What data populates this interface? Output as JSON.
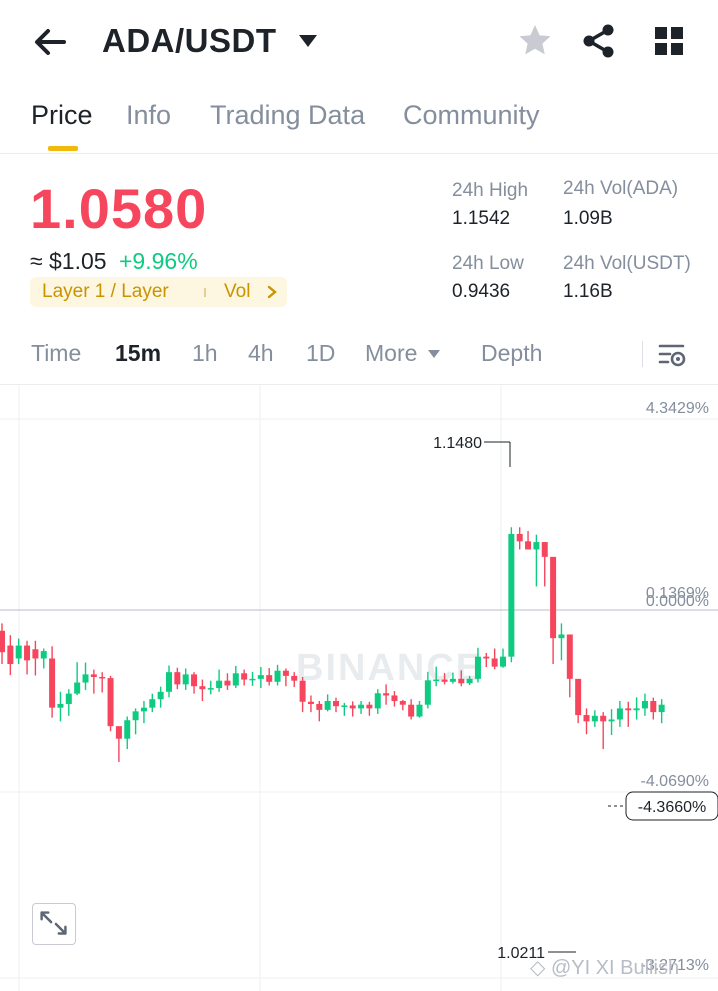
{
  "header": {
    "pair": "ADA/USDT",
    "icons": [
      "back-arrow-icon",
      "caret-down-icon",
      "star-icon",
      "share-icon",
      "grid-icon"
    ]
  },
  "tabs": [
    {
      "label": "Price",
      "active": true
    },
    {
      "label": "Info",
      "active": false
    },
    {
      "label": "Trading Data",
      "active": false
    },
    {
      "label": "Community",
      "active": false
    }
  ],
  "ticker": {
    "last_price": "1.0580",
    "usd_price": "≈ $1.05",
    "change_pct": "+9.96%",
    "tag": "Layer 1 / Layer",
    "tag_vol": "Vol",
    "stats": {
      "high_label": "24h High",
      "high_value": "1.1542",
      "vol_ada_label": "24h Vol(ADA)",
      "vol_ada_value": "1.09B",
      "low_label": "24h Low",
      "low_value": "0.9436",
      "vol_usdt_label": "24h Vol(USDT)",
      "vol_usdt_value": "1.16B"
    }
  },
  "timeframes": {
    "items": [
      "Time",
      "15m",
      "1h",
      "4h",
      "1D",
      "More"
    ],
    "active": "15m",
    "depth": "Depth"
  },
  "colors": {
    "up": "#0ecb81",
    "down": "#f6465d",
    "accent": "#f0b90b",
    "muted": "#848e9c"
  },
  "chart_data": {
    "type": "candlestick",
    "interval": "15m",
    "price_max": 1.1542,
    "price_min": 1.0211,
    "right_axis_labels": [
      "4.3429%",
      "0.1369%",
      "0.0000%",
      "-4.0690%",
      "-3.2713%"
    ],
    "current_label": "-4.3660%",
    "high_marker": "1.1480",
    "low_marker": "1.0211",
    "watermark": "BINANCE",
    "candles": [
      [
        1.108,
        1.1022,
        1.11,
        1.099
      ],
      [
        1.104,
        1.099,
        1.1068,
        1.096
      ],
      [
        1.1005,
        1.104,
        1.1059,
        1.099
      ],
      [
        1.104,
        1.1,
        1.1053,
        1.0962
      ],
      [
        1.103,
        1.1005,
        1.1053,
        1.0959
      ],
      [
        1.1005,
        1.1025,
        1.1032,
        1.0978
      ],
      [
        1.1005,
        1.0872,
        1.1038,
        1.0845
      ],
      [
        1.0872,
        1.0882,
        1.0915,
        1.0835
      ],
      [
        1.0882,
        1.091,
        1.0922,
        1.085
      ],
      [
        1.091,
        1.094,
        1.0995,
        1.0906
      ],
      [
        1.094,
        1.0962,
        1.0994,
        1.092
      ],
      [
        1.0962,
        1.0955,
        1.0975,
        1.091
      ],
      [
        1.0955,
        1.0952,
        1.0968,
        1.0913
      ],
      [
        1.0952,
        1.0822,
        1.0958,
        1.0808
      ],
      [
        1.0822,
        1.0788,
        1.082,
        1.0725
      ],
      [
        1.0788,
        1.0838,
        1.0848,
        1.076
      ],
      [
        1.0838,
        1.0862,
        1.087,
        1.08
      ],
      [
        1.0862,
        1.0872,
        1.089,
        1.083
      ],
      [
        1.0872,
        1.0895,
        1.091,
        1.086
      ],
      [
        1.0895,
        1.0915,
        1.0929,
        1.0872
      ],
      [
        1.0915,
        1.0968,
        1.0986,
        1.09
      ],
      [
        1.0968,
        1.0935,
        1.098,
        1.0922
      ],
      [
        1.0935,
        1.0962,
        1.0978,
        1.092
      ],
      [
        1.0962,
        1.093,
        1.0968,
        1.091
      ],
      [
        1.093,
        1.0922,
        1.0948,
        1.089
      ],
      [
        1.0922,
        1.0925,
        1.0945,
        1.0908
      ],
      [
        1.0925,
        1.0945,
        1.0975,
        1.0915
      ],
      [
        1.0945,
        1.0932,
        1.0965,
        1.092
      ],
      [
        1.0932,
        1.0965,
        1.0985,
        1.0925
      ],
      [
        1.0965,
        1.0948,
        1.0975,
        1.0932
      ],
      [
        1.0948,
        1.095,
        1.0969,
        1.0931
      ],
      [
        1.095,
        1.096,
        1.0982,
        1.0925
      ],
      [
        1.096,
        1.0942,
        1.0979,
        1.0932
      ],
      [
        1.0942,
        1.0972,
        1.0988,
        1.0932
      ],
      [
        1.0972,
        1.0958,
        1.0978,
        1.093
      ],
      [
        1.0958,
        1.0945,
        1.0968,
        1.0928
      ],
      [
        1.0945,
        1.0888,
        1.0955,
        1.086
      ],
      [
        1.0888,
        1.0882,
        1.0905,
        1.086
      ],
      [
        1.0882,
        1.0866,
        1.089,
        1.0835
      ],
      [
        1.0866,
        1.089,
        1.0908,
        1.0862
      ],
      [
        1.089,
        1.0876,
        1.0899,
        1.086
      ],
      [
        1.0876,
        1.0878,
        1.0885,
        1.085
      ],
      [
        1.0878,
        1.087,
        1.0889,
        1.0848
      ],
      [
        1.087,
        1.088,
        1.089,
        1.0855
      ],
      [
        1.088,
        1.087,
        1.0888,
        1.085
      ],
      [
        1.087,
        1.0911,
        1.0922,
        1.0855
      ],
      [
        1.0911,
        1.0905,
        1.0935,
        1.088
      ],
      [
        1.0905,
        1.089,
        1.0917,
        1.0875
      ],
      [
        1.089,
        1.088,
        1.0893,
        1.0865
      ],
      [
        1.088,
        1.0848,
        1.0895,
        1.084
      ],
      [
        1.0848,
        1.088,
        1.089,
        1.0845
      ],
      [
        1.088,
        1.0946,
        1.0969,
        1.087
      ],
      [
        1.0946,
        1.0948,
        1.0983,
        1.093
      ],
      [
        1.0948,
        1.0942,
        1.0966,
        1.0935
      ],
      [
        1.0942,
        1.095,
        1.0967,
        1.0937
      ],
      [
        1.095,
        1.0938,
        1.0973,
        1.093
      ],
      [
        1.0938,
        1.095,
        1.0958,
        1.0933
      ],
      [
        1.095,
        1.101,
        1.1034,
        1.094
      ],
      [
        1.101,
        1.1005,
        1.102,
        1.0982
      ],
      [
        1.1005,
        1.0983,
        1.1032,
        1.0976
      ],
      [
        1.0983,
        1.101,
        1.1032,
        1.098
      ],
      [
        1.101,
        1.1342,
        1.136,
        1.0995
      ],
      [
        1.1342,
        1.1322,
        1.136,
        1.13
      ],
      [
        1.1322,
        1.13,
        1.135,
        1.13
      ],
      [
        1.13,
        1.132,
        1.134,
        1.12
      ],
      [
        1.132,
        1.128,
        1.132,
        1.12
      ],
      [
        1.128,
        1.106,
        1.108,
        1.099
      ],
      [
        1.106,
        1.107,
        1.11,
        1.1
      ],
      [
        1.107,
        1.095,
        1.0975,
        1.09
      ],
      [
        1.095,
        1.0852,
        1.09,
        1.083
      ],
      [
        1.0852,
        1.0835,
        1.087,
        1.08
      ],
      [
        1.0835,
        1.085,
        1.0865,
        1.082
      ],
      [
        1.085,
        1.0835,
        1.086,
        1.076
      ],
      [
        1.0835,
        1.084,
        1.0868,
        1.0798
      ],
      [
        1.084,
        1.087,
        1.089,
        1.082
      ],
      [
        1.087,
        1.0865,
        1.0888,
        1.082
      ],
      [
        1.0865,
        1.087,
        1.09,
        1.084
      ],
      [
        1.087,
        1.089,
        1.091,
        1.085
      ],
      [
        1.089,
        1.086,
        1.0899,
        1.084
      ],
      [
        1.086,
        1.088,
        1.0895,
        1.083
      ]
    ]
  }
}
